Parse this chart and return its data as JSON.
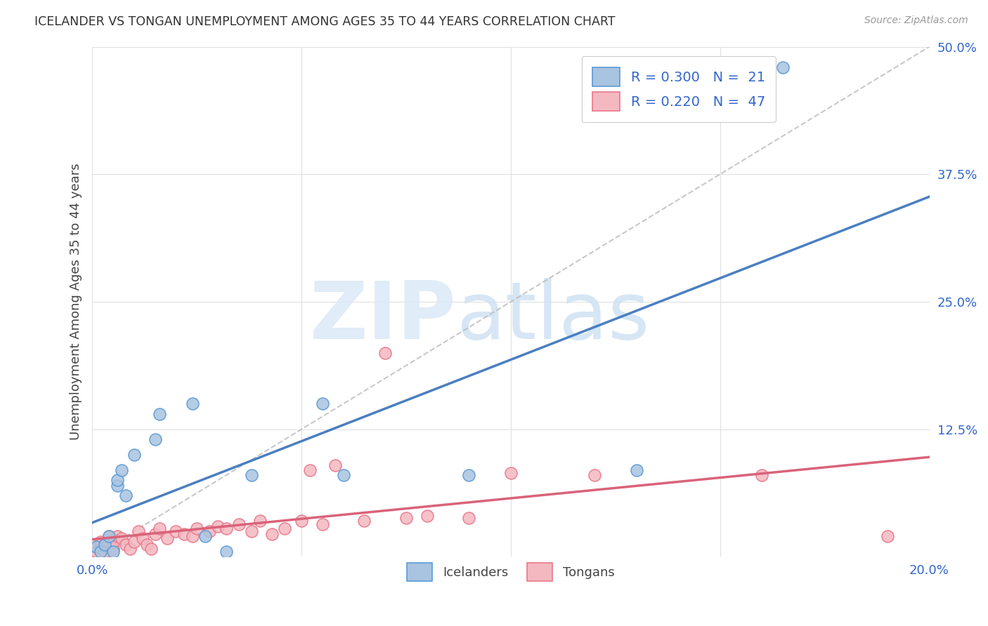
{
  "title": "ICELANDER VS TONGAN UNEMPLOYMENT AMONG AGES 35 TO 44 YEARS CORRELATION CHART",
  "source": "Source: ZipAtlas.com",
  "ylabel": "Unemployment Among Ages 35 to 44 years",
  "xlim": [
    0.0,
    0.2
  ],
  "ylim": [
    0.0,
    0.5
  ],
  "xticks": [
    0.0,
    0.05,
    0.1,
    0.15,
    0.2
  ],
  "yticks": [
    0.0,
    0.125,
    0.25,
    0.375,
    0.5
  ],
  "icelander_color": "#a8c4e0",
  "tongan_color": "#f4b8c1",
  "icelander_edge_color": "#5b9bd5",
  "tongan_edge_color": "#e8788a",
  "icelander_line_color": "#4a7fc1",
  "tongan_line_color": "#d9637a",
  "trend_line_color": "#bbbbbb",
  "legend_color": "#3366cc",
  "R_icelander": 0.3,
  "N_icelander": 21,
  "R_tongan": 0.22,
  "N_tongan": 47,
  "icelander_x": [
    0.001,
    0.002,
    0.003,
    0.004,
    0.005,
    0.006,
    0.006,
    0.007,
    0.008,
    0.01,
    0.015,
    0.016,
    0.024,
    0.027,
    0.032,
    0.038,
    0.055,
    0.06,
    0.09,
    0.13,
    0.165
  ],
  "icelander_y": [
    0.01,
    0.005,
    0.012,
    0.02,
    0.005,
    0.07,
    0.075,
    0.085,
    0.06,
    0.1,
    0.115,
    0.14,
    0.15,
    0.02,
    0.005,
    0.08,
    0.15,
    0.08,
    0.08,
    0.085,
    0.48
  ],
  "tongan_x": [
    0.001,
    0.001,
    0.002,
    0.002,
    0.003,
    0.003,
    0.004,
    0.004,
    0.005,
    0.005,
    0.006,
    0.007,
    0.008,
    0.009,
    0.01,
    0.011,
    0.012,
    0.013,
    0.014,
    0.015,
    0.016,
    0.018,
    0.02,
    0.022,
    0.024,
    0.025,
    0.028,
    0.03,
    0.032,
    0.035,
    0.038,
    0.04,
    0.043,
    0.046,
    0.05,
    0.052,
    0.055,
    0.058,
    0.065,
    0.07,
    0.075,
    0.08,
    0.09,
    0.1,
    0.12,
    0.16,
    0.19
  ],
  "tongan_y": [
    0.005,
    0.01,
    0.008,
    0.015,
    0.005,
    0.012,
    0.015,
    0.02,
    0.008,
    0.015,
    0.02,
    0.018,
    0.012,
    0.008,
    0.015,
    0.025,
    0.018,
    0.012,
    0.008,
    0.022,
    0.028,
    0.018,
    0.025,
    0.022,
    0.02,
    0.028,
    0.025,
    0.03,
    0.028,
    0.032,
    0.025,
    0.035,
    0.022,
    0.028,
    0.035,
    0.085,
    0.032,
    0.09,
    0.035,
    0.2,
    0.038,
    0.04,
    0.038,
    0.082,
    0.08,
    0.08,
    0.02
  ],
  "background_color": "#ffffff",
  "grid_color": "#e0e0e0"
}
